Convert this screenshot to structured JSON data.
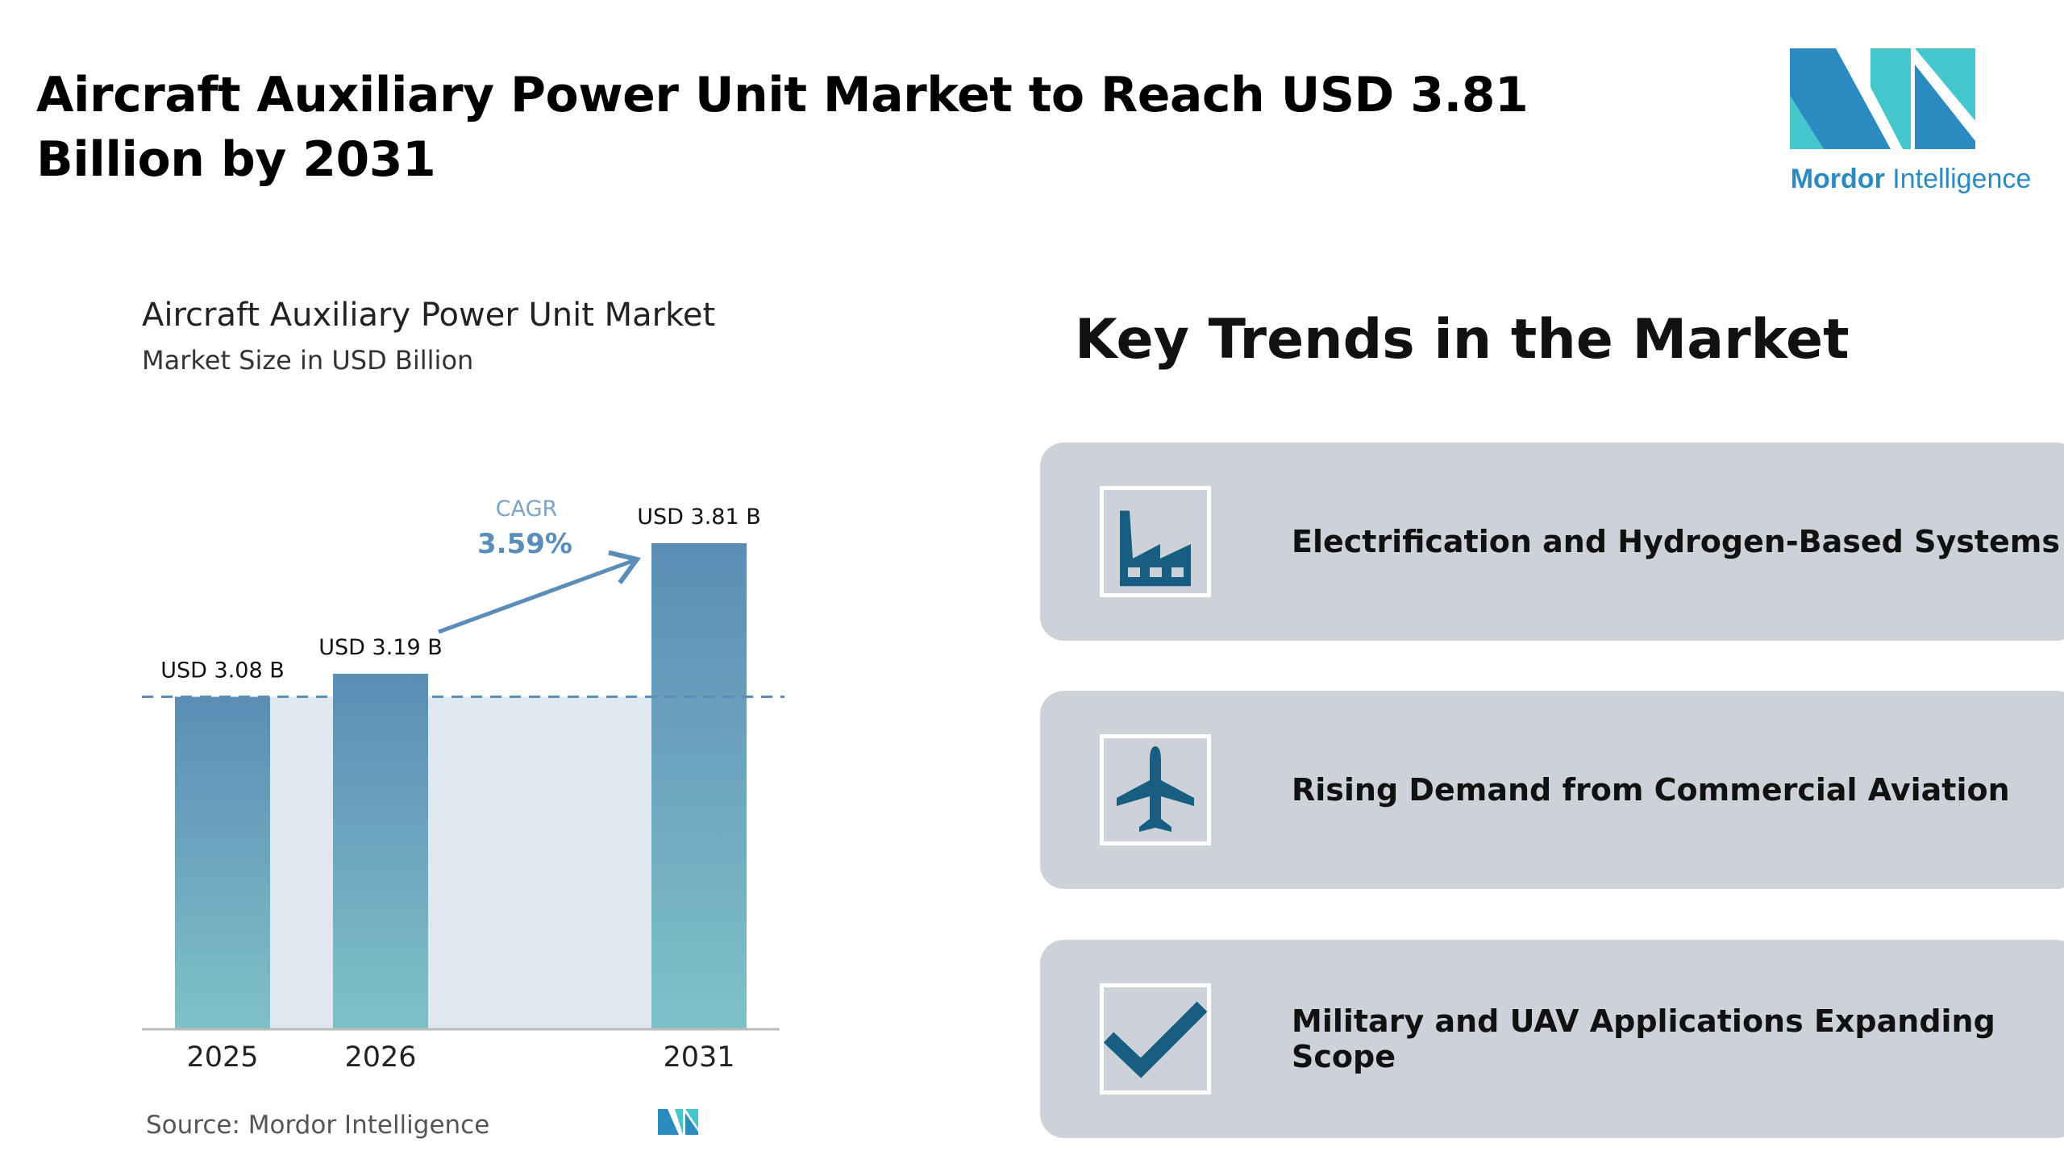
{
  "header": {
    "title": "Aircraft Auxiliary Power Unit Market to Reach USD 3.81 Billion by 2031",
    "logo_text_bold": "Mordor",
    "logo_text_light": "Intelligence"
  },
  "chart_data": {
    "type": "bar",
    "title": "Aircraft Auxiliary Power Unit Market",
    "subtitle": "Market Size in USD Billion",
    "categories": [
      "2025",
      "2026",
      "2031"
    ],
    "values": [
      3.08,
      3.19,
      3.81
    ],
    "data_labels": [
      "USD 3.08 B",
      "USD 3.19 B",
      "USD 3.81 B"
    ],
    "annotation": {
      "label": "CAGR",
      "value": "3.59%"
    },
    "reference_line": 3.08,
    "colors": {
      "bar_top": "#5b8db5",
      "bar_bottom": "#7fc1c8",
      "accent": "#5a8db8",
      "shade": "#dfe7ef"
    },
    "source": "Source:  Mordor Intelligence"
  },
  "trends": {
    "title": "Key Trends in the Market",
    "items": [
      {
        "icon": "factory-icon",
        "label": "Electrification and Hydrogen-Based Systems"
      },
      {
        "icon": "airplane-icon",
        "label": "Rising Demand from Commercial Aviation"
      },
      {
        "icon": "checkmark-icon",
        "label": "Military and UAV Applications Expanding Scope"
      }
    ],
    "icon_color": "#175e82",
    "card_color": "#cdd2d9"
  }
}
